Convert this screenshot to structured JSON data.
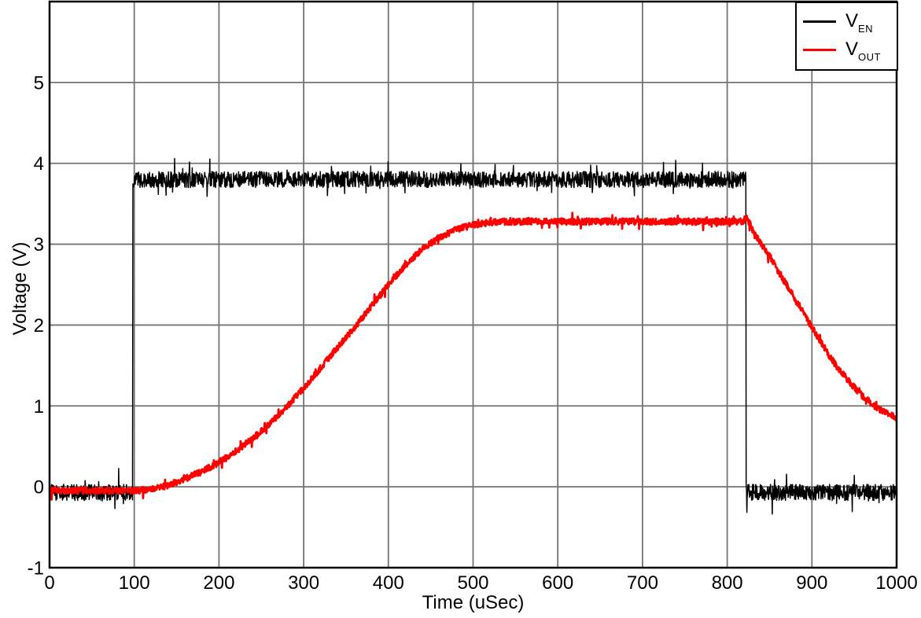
{
  "figure": {
    "background": "#ffffff",
    "axis_color": "#000000",
    "grid_color": "#737373"
  },
  "legend": {
    "position": "top-right",
    "items": [
      {
        "name": "V_EN",
        "main": "V",
        "sub": "EN",
        "color": "#000000"
      },
      {
        "name": "V_OUT",
        "main": "V",
        "sub": "OUT",
        "color": "#ff0000"
      }
    ]
  },
  "chart_data": {
    "type": "line",
    "title": "",
    "xlabel": "Time (uSec)",
    "ylabel": "Voltage (V)",
    "xlim": [
      0,
      1000
    ],
    "ylim": [
      -1,
      6
    ],
    "xticks": [
      0,
      100,
      200,
      300,
      400,
      500,
      600,
      700,
      800,
      900,
      1000
    ],
    "yticks": [
      -1,
      0,
      1,
      2,
      3,
      4,
      5
    ],
    "grid": true,
    "legend_position": "top-right",
    "series": [
      {
        "name": "V_EN",
        "color": "#000000",
        "style": "noisy-square-pulse",
        "low_level_v": -0.07,
        "high_level_v": 3.8,
        "rise_at_usec": 98,
        "fall_at_usec": 822,
        "noise_amp_v": 0.1,
        "keypoints": [
          [
            0,
            -0.07
          ],
          [
            98,
            -0.07
          ],
          [
            98.4,
            3.8
          ],
          [
            822,
            3.8
          ],
          [
            822.4,
            -0.07
          ],
          [
            1000,
            -0.07
          ]
        ]
      },
      {
        "name": "V_OUT",
        "color": "#ff0000",
        "style": "noisy-soft-start",
        "plateau_v": 3.28,
        "final_v": 0.85,
        "noise_amp_v": 0.04,
        "keypoints": [
          [
            0,
            -0.05
          ],
          [
            100,
            -0.05
          ],
          [
            120,
            -0.03
          ],
          [
            140,
            0.02
          ],
          [
            160,
            0.1
          ],
          [
            180,
            0.19
          ],
          [
            200,
            0.3
          ],
          [
            220,
            0.44
          ],
          [
            240,
            0.6
          ],
          [
            260,
            0.78
          ],
          [
            280,
            0.99
          ],
          [
            300,
            1.22
          ],
          [
            320,
            1.47
          ],
          [
            340,
            1.72
          ],
          [
            360,
            1.97
          ],
          [
            380,
            2.23
          ],
          [
            400,
            2.5
          ],
          [
            420,
            2.74
          ],
          [
            440,
            2.94
          ],
          [
            460,
            3.08
          ],
          [
            480,
            3.18
          ],
          [
            500,
            3.24
          ],
          [
            520,
            3.27
          ],
          [
            540,
            3.28
          ],
          [
            818,
            3.28
          ],
          [
            823,
            3.33
          ],
          [
            830,
            3.18
          ],
          [
            840,
            3.0
          ],
          [
            850,
            2.85
          ],
          [
            860,
            2.67
          ],
          [
            870,
            2.5
          ],
          [
            880,
            2.33
          ],
          [
            890,
            2.15
          ],
          [
            900,
            1.97
          ],
          [
            910,
            1.8
          ],
          [
            920,
            1.63
          ],
          [
            930,
            1.48
          ],
          [
            940,
            1.35
          ],
          [
            950,
            1.23
          ],
          [
            960,
            1.12
          ],
          [
            970,
            1.03
          ],
          [
            980,
            0.96
          ],
          [
            990,
            0.9
          ],
          [
            1000,
            0.85
          ]
        ]
      }
    ]
  }
}
